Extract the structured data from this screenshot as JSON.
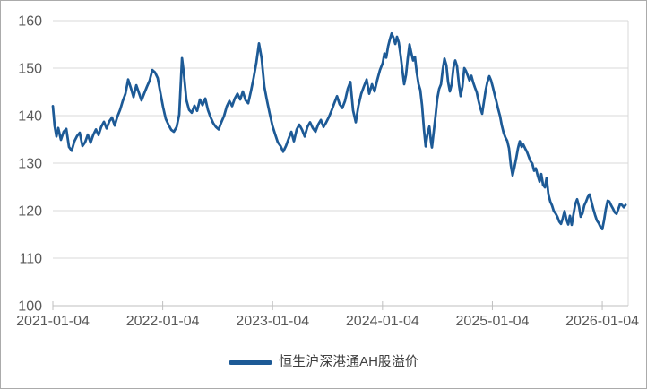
{
  "chart_data": {
    "type": "line",
    "title": "",
    "xlabel": "",
    "ylabel": "",
    "ylim": [
      100,
      160
    ],
    "xlim_t": [
      0,
      5.236
    ],
    "grid": "horizontal-only",
    "legend_position": "bottom-center",
    "y_ticks": [
      "100",
      "110",
      "120",
      "130",
      "140",
      "150",
      "160"
    ],
    "x_ticks": [
      {
        "t": 0,
        "label": "2021-01-04"
      },
      {
        "t": 1,
        "label": "2022-01-04"
      },
      {
        "t": 2,
        "label": "2023-01-04"
      },
      {
        "t": 3,
        "label": "2024-01-04"
      },
      {
        "t": 4,
        "label": "2025-01-04"
      },
      {
        "t": 5,
        "label": "2026-01-04"
      }
    ],
    "colors": {
      "line": "#1D5A96",
      "gridline": "#D9D9D9",
      "axis": "#BFBFBF",
      "text": "#595959",
      "border": "#ABABAB",
      "background": "#FFFFFF"
    },
    "series": [
      {
        "name": "恒生沪深港通AH股溢价",
        "points": [
          [
            0.0,
            142.0
          ],
          [
            0.016,
            137.8
          ],
          [
            0.033,
            135.6
          ],
          [
            0.049,
            137.4
          ],
          [
            0.073,
            134.9
          ],
          [
            0.098,
            136.6
          ],
          [
            0.122,
            137.2
          ],
          [
            0.147,
            133.4
          ],
          [
            0.171,
            132.6
          ],
          [
            0.196,
            134.6
          ],
          [
            0.22,
            135.7
          ],
          [
            0.245,
            136.4
          ],
          [
            0.269,
            133.6
          ],
          [
            0.294,
            134.4
          ],
          [
            0.318,
            136.0
          ],
          [
            0.343,
            134.3
          ],
          [
            0.367,
            135.9
          ],
          [
            0.392,
            137.1
          ],
          [
            0.416,
            135.9
          ],
          [
            0.44,
            137.6
          ],
          [
            0.465,
            138.7
          ],
          [
            0.489,
            137.3
          ],
          [
            0.514,
            138.8
          ],
          [
            0.538,
            139.6
          ],
          [
            0.563,
            137.9
          ],
          [
            0.587,
            139.8
          ],
          [
            0.612,
            141.2
          ],
          [
            0.636,
            143.1
          ],
          [
            0.661,
            144.6
          ],
          [
            0.685,
            147.6
          ],
          [
            0.71,
            145.8
          ],
          [
            0.734,
            143.9
          ],
          [
            0.759,
            146.4
          ],
          [
            0.783,
            144.8
          ],
          [
            0.807,
            143.2
          ],
          [
            0.832,
            144.7
          ],
          [
            0.856,
            146.1
          ],
          [
            0.881,
            147.4
          ],
          [
            0.905,
            149.6
          ],
          [
            0.93,
            149.1
          ],
          [
            0.954,
            147.9
          ],
          [
            0.979,
            144.8
          ],
          [
            1.003,
            141.8
          ],
          [
            1.028,
            139.3
          ],
          [
            1.052,
            138.1
          ],
          [
            1.077,
            137.0
          ],
          [
            1.101,
            136.6
          ],
          [
            1.126,
            137.6
          ],
          [
            1.15,
            140.2
          ],
          [
            1.175,
            152.1
          ],
          [
            1.191,
            149.2
          ],
          [
            1.215,
            143.3
          ],
          [
            1.24,
            141.2
          ],
          [
            1.264,
            140.6
          ],
          [
            1.289,
            142.1
          ],
          [
            1.313,
            141.0
          ],
          [
            1.338,
            143.4
          ],
          [
            1.362,
            142.2
          ],
          [
            1.387,
            143.6
          ],
          [
            1.411,
            141.2
          ],
          [
            1.436,
            139.6
          ],
          [
            1.46,
            138.4
          ],
          [
            1.484,
            137.6
          ],
          [
            1.509,
            137.1
          ],
          [
            1.533,
            138.6
          ],
          [
            1.558,
            139.9
          ],
          [
            1.582,
            141.9
          ],
          [
            1.607,
            143.1
          ],
          [
            1.631,
            142.0
          ],
          [
            1.656,
            143.6
          ],
          [
            1.68,
            144.6
          ],
          [
            1.705,
            143.4
          ],
          [
            1.729,
            145.1
          ],
          [
            1.754,
            143.2
          ],
          [
            1.778,
            142.6
          ],
          [
            1.803,
            145.2
          ],
          [
            1.827,
            147.9
          ],
          [
            1.852,
            151.2
          ],
          [
            1.876,
            155.2
          ],
          [
            1.9,
            152.0
          ],
          [
            1.925,
            146.1
          ],
          [
            1.949,
            143.1
          ],
          [
            1.974,
            140.4
          ],
          [
            1.998,
            137.9
          ],
          [
            2.023,
            136.1
          ],
          [
            2.047,
            134.4
          ],
          [
            2.072,
            133.6
          ],
          [
            2.096,
            132.4
          ],
          [
            2.121,
            133.6
          ],
          [
            2.145,
            135.1
          ],
          [
            2.17,
            136.6
          ],
          [
            2.194,
            134.6
          ],
          [
            2.219,
            137.1
          ],
          [
            2.243,
            138.1
          ],
          [
            2.268,
            137.0
          ],
          [
            2.292,
            135.6
          ],
          [
            2.316,
            137.6
          ],
          [
            2.341,
            138.6
          ],
          [
            2.365,
            137.4
          ],
          [
            2.39,
            136.6
          ],
          [
            2.414,
            138.1
          ],
          [
            2.439,
            139.1
          ],
          [
            2.463,
            137.6
          ],
          [
            2.488,
            138.6
          ],
          [
            2.512,
            139.7
          ],
          [
            2.537,
            141.1
          ],
          [
            2.561,
            142.6
          ],
          [
            2.586,
            144.1
          ],
          [
            2.61,
            142.4
          ],
          [
            2.634,
            141.6
          ],
          [
            2.659,
            143.1
          ],
          [
            2.683,
            145.6
          ],
          [
            2.708,
            147.1
          ],
          [
            2.732,
            141.1
          ],
          [
            2.757,
            138.6
          ],
          [
            2.781,
            142.1
          ],
          [
            2.806,
            144.6
          ],
          [
            2.83,
            146.1
          ],
          [
            2.855,
            147.6
          ],
          [
            2.879,
            144.6
          ],
          [
            2.904,
            146.6
          ],
          [
            2.928,
            145.1
          ],
          [
            2.953,
            147.6
          ],
          [
            2.977,
            149.6
          ],
          [
            3.002,
            151.1
          ],
          [
            3.018,
            153.1
          ],
          [
            3.034,
            152.2
          ],
          [
            3.051,
            154.6
          ],
          [
            3.067,
            156.1
          ],
          [
            3.083,
            157.3
          ],
          [
            3.1,
            156.4
          ],
          [
            3.116,
            155.1
          ],
          [
            3.132,
            156.6
          ],
          [
            3.148,
            155.4
          ],
          [
            3.165,
            152.6
          ],
          [
            3.181,
            149.6
          ],
          [
            3.197,
            146.6
          ],
          [
            3.214,
            148.6
          ],
          [
            3.23,
            152.1
          ],
          [
            3.246,
            155.0
          ],
          [
            3.263,
            153.1
          ],
          [
            3.279,
            151.6
          ],
          [
            3.295,
            152.4
          ],
          [
            3.311,
            149.1
          ],
          [
            3.328,
            146.6
          ],
          [
            3.344,
            145.4
          ],
          [
            3.36,
            142.1
          ],
          [
            3.377,
            137.1
          ],
          [
            3.393,
            133.5
          ],
          [
            3.409,
            136.1
          ],
          [
            3.426,
            137.7
          ],
          [
            3.442,
            134.4
          ],
          [
            3.45,
            133.3
          ],
          [
            3.466,
            136.6
          ],
          [
            3.483,
            140.1
          ],
          [
            3.499,
            143.6
          ],
          [
            3.515,
            145.6
          ],
          [
            3.532,
            146.6
          ],
          [
            3.548,
            149.6
          ],
          [
            3.564,
            152.0
          ],
          [
            3.581,
            150.6
          ],
          [
            3.597,
            147.1
          ],
          [
            3.613,
            145.1
          ],
          [
            3.629,
            146.6
          ],
          [
            3.646,
            150.1
          ],
          [
            3.662,
            151.6
          ],
          [
            3.678,
            150.4
          ],
          [
            3.695,
            146.6
          ],
          [
            3.711,
            144.1
          ],
          [
            3.727,
            146.1
          ],
          [
            3.744,
            150.0
          ],
          [
            3.76,
            149.4
          ],
          [
            3.776,
            148.4
          ],
          [
            3.792,
            147.4
          ],
          [
            3.809,
            148.4
          ],
          [
            3.825,
            147.0
          ],
          [
            3.841,
            145.9
          ],
          [
            3.858,
            144.9
          ],
          [
            3.874,
            143.1
          ],
          [
            3.89,
            141.6
          ],
          [
            3.907,
            140.4
          ],
          [
            3.923,
            142.9
          ],
          [
            3.939,
            145.4
          ],
          [
            3.955,
            147.1
          ],
          [
            3.972,
            148.3
          ],
          [
            3.988,
            147.4
          ],
          [
            4.005,
            145.9
          ],
          [
            4.021,
            144.4
          ],
          [
            4.037,
            142.9
          ],
          [
            4.053,
            141.4
          ],
          [
            4.07,
            139.9
          ],
          [
            4.086,
            137.9
          ],
          [
            4.102,
            136.4
          ],
          [
            4.119,
            135.4
          ],
          [
            4.135,
            134.7
          ],
          [
            4.151,
            133.1
          ],
          [
            4.168,
            129.6
          ],
          [
            4.184,
            127.4
          ],
          [
            4.2,
            129.1
          ],
          [
            4.217,
            131.1
          ],
          [
            4.233,
            133.1
          ],
          [
            4.249,
            134.6
          ],
          [
            4.266,
            133.4
          ],
          [
            4.282,
            133.9
          ],
          [
            4.298,
            133.1
          ],
          [
            4.314,
            132.4
          ],
          [
            4.331,
            131.4
          ],
          [
            4.347,
            130.4
          ],
          [
            4.363,
            129.9
          ],
          [
            4.38,
            128.4
          ],
          [
            4.396,
            128.9
          ],
          [
            4.412,
            127.4
          ],
          [
            4.429,
            126.1
          ],
          [
            4.445,
            127.7
          ],
          [
            4.461,
            125.4
          ],
          [
            4.478,
            124.9
          ],
          [
            4.494,
            126.9
          ],
          [
            4.51,
            123.4
          ],
          [
            4.527,
            121.9
          ],
          [
            4.543,
            121.1
          ],
          [
            4.559,
            119.9
          ],
          [
            4.575,
            119.4
          ],
          [
            4.592,
            118.7
          ],
          [
            4.608,
            117.7
          ],
          [
            4.624,
            117.2
          ],
          [
            4.641,
            118.4
          ],
          [
            4.657,
            119.9
          ],
          [
            4.673,
            118.2
          ],
          [
            4.69,
            117.1
          ],
          [
            4.706,
            118.9
          ],
          [
            4.722,
            117.0
          ],
          [
            4.739,
            119.4
          ],
          [
            4.755,
            121.4
          ],
          [
            4.771,
            122.4
          ],
          [
            4.788,
            120.9
          ],
          [
            4.804,
            118.7
          ],
          [
            4.82,
            119.4
          ],
          [
            4.836,
            121.1
          ],
          [
            4.853,
            121.9
          ],
          [
            4.869,
            122.9
          ],
          [
            4.885,
            123.4
          ],
          [
            4.902,
            121.9
          ],
          [
            4.918,
            120.4
          ],
          [
            4.934,
            119.1
          ],
          [
            4.951,
            117.9
          ],
          [
            4.967,
            117.4
          ],
          [
            4.983,
            116.6
          ],
          [
            5.0,
            116.1
          ],
          [
            5.016,
            117.9
          ],
          [
            5.033,
            120.4
          ],
          [
            5.049,
            122.1
          ],
          [
            5.065,
            121.9
          ],
          [
            5.081,
            121.1
          ],
          [
            5.098,
            120.4
          ],
          [
            5.114,
            119.6
          ],
          [
            5.13,
            119.3
          ],
          [
            5.147,
            120.4
          ],
          [
            5.163,
            121.4
          ],
          [
            5.179,
            121.2
          ],
          [
            5.196,
            120.7
          ],
          [
            5.212,
            121.2
          ]
        ]
      }
    ]
  },
  "legend": {
    "label": "恒生沪深港通AH股溢价"
  }
}
